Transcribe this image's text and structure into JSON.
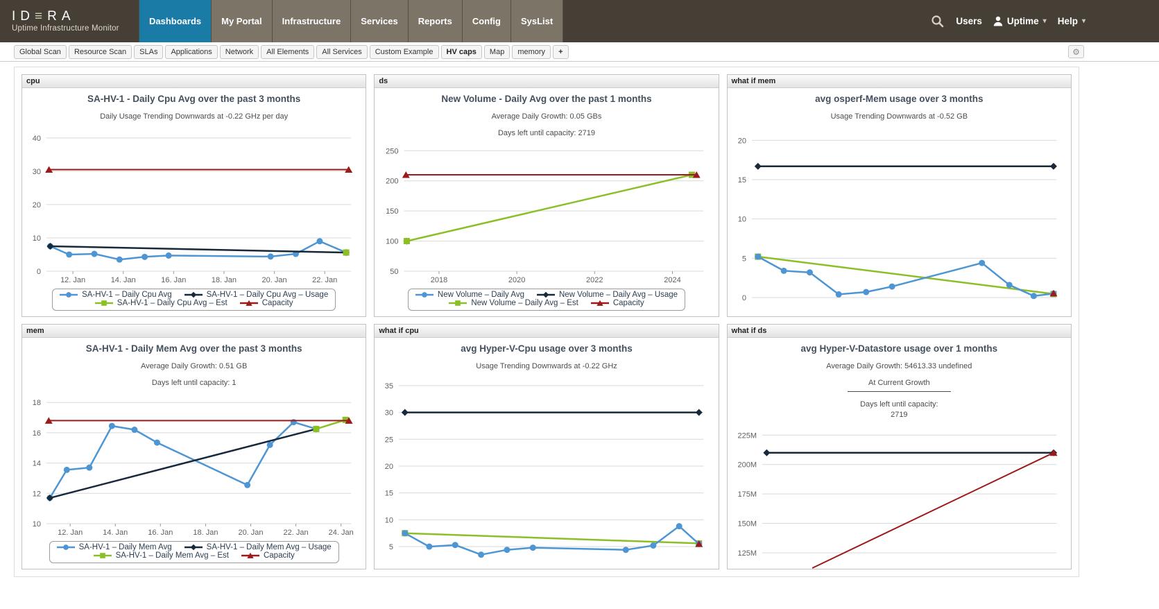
{
  "header": {
    "logo": {
      "brand": "IDERA",
      "display_left": "ID",
      "display_e": "≡",
      "display_right": "RA",
      "subtitle": "Uptime Infrastructure Monitor"
    },
    "nav": [
      {
        "label": "Dashboards",
        "active": true
      },
      {
        "label": "My Portal"
      },
      {
        "label": "Infrastructure"
      },
      {
        "label": "Services"
      },
      {
        "label": "Reports"
      },
      {
        "label": "Config"
      },
      {
        "label": "SysList"
      }
    ],
    "right": {
      "users": "Users",
      "account": "Uptime",
      "help": "Help"
    }
  },
  "tabbar": {
    "tabs": [
      {
        "label": "Global Scan"
      },
      {
        "label": "Resource Scan"
      },
      {
        "label": "SLAs"
      },
      {
        "label": "Applications"
      },
      {
        "label": "Network"
      },
      {
        "label": "All Elements"
      },
      {
        "label": "All Services"
      },
      {
        "label": "Custom Example"
      },
      {
        "label": "HV caps",
        "active": true
      },
      {
        "label": "Map"
      },
      {
        "label": "memory"
      }
    ],
    "add_tab": "+"
  },
  "icons": {
    "gear": "⚙",
    "caret": "▾"
  },
  "colors": {
    "nav_active_blue": "#1a7ba6",
    "header_brown": "#46f3f35",
    "series_avg_blue": "#4e96d3",
    "series_usage_navy": "#17293a",
    "series_est_green": "#8cbf26",
    "series_capacity_red": "#9c1a1a"
  },
  "charts": [
    {
      "panel_label": "cpu",
      "type": "line",
      "title": "SA-HV-1 - Daily Cpu Avg over the past 3 months",
      "subtitles": [
        {
          "text": "Daily Usage Trending Downwards at -0.22 GHz per day"
        }
      ],
      "xlim": [
        10.95,
        23.05
      ],
      "ylim": [
        0,
        43.5
      ],
      "yticks": [
        {
          "v": 0,
          "label": "0"
        },
        {
          "v": 10,
          "label": "10"
        },
        {
          "v": 20,
          "label": "20"
        },
        {
          "v": 30,
          "label": "30"
        },
        {
          "v": 40,
          "label": "40"
        }
      ],
      "xticks": [
        {
          "v": 12,
          "label": "12. Jan"
        },
        {
          "v": 14,
          "label": "14. Jan"
        },
        {
          "v": 16,
          "label": "16. Jan"
        },
        {
          "v": 18,
          "label": "18. Jan"
        },
        {
          "v": 20,
          "label": "20. Jan"
        },
        {
          "v": 22,
          "label": "22. Jan"
        }
      ],
      "series": [
        {
          "role": "avg",
          "name": "SA-HV-1 – Daily Cpu Avg",
          "color": "#4e96d3",
          "marker": "circle",
          "marker_at": "all",
          "x": [
            11.1,
            11.85,
            12.85,
            13.85,
            14.85,
            15.8,
            19.85,
            20.85,
            21.8,
            22.85
          ],
          "y": [
            7.5,
            5.0,
            5.2,
            3.5,
            4.3,
            4.7,
            4.4,
            5.2,
            9.0,
            5.6
          ]
        },
        {
          "role": "usage",
          "name": "SA-HV-1 – Daily Cpu Avg – Usage",
          "color": "#17293a",
          "marker": "diamond",
          "marker_at": "ends",
          "x": [
            11.1,
            22.85
          ],
          "y": [
            7.5,
            5.6
          ]
        },
        {
          "role": "est",
          "name": "SA-HV-1 – Daily Cpu Avg – Est",
          "color": "#8cbf26",
          "marker": "square",
          "marker_at": "all",
          "x": [
            22.85
          ],
          "y": [
            5.6
          ]
        },
        {
          "role": "capacity",
          "name": "Capacity",
          "color": "#9c1a1a",
          "marker": "triangle",
          "marker_at": "ends",
          "x": [
            11.05,
            22.95
          ],
          "y": [
            30.5,
            30.5
          ]
        }
      ],
      "legend_rows": [
        [
          0,
          1
        ],
        [
          2,
          3
        ]
      ]
    },
    {
      "panel_label": "ds",
      "type": "line",
      "title": "New Volume - Daily Avg over the past 1 months",
      "subtitles": [
        {
          "text": "Average Daily Growth: 0.05 GBs"
        },
        {
          "text": "Days left until capacity: 2719"
        }
      ],
      "xlim": [
        2017.1,
        2024.8
      ],
      "ylim": [
        50,
        263
      ],
      "yticks": [
        {
          "v": 50,
          "label": "50"
        },
        {
          "v": 100,
          "label": "100"
        },
        {
          "v": 150,
          "label": "150"
        },
        {
          "v": 200,
          "label": "200"
        },
        {
          "v": 250,
          "label": "250"
        }
      ],
      "xticks": [
        {
          "v": 2018,
          "label": "2018"
        },
        {
          "v": 2020,
          "label": "2020"
        },
        {
          "v": 2022,
          "label": "2022"
        },
        {
          "v": 2024,
          "label": "2024"
        }
      ],
      "series": [
        {
          "role": "avg",
          "name": "New Volume – Daily Avg",
          "color": "#4e96d3",
          "marker": "circle",
          "marker_at": "all",
          "x": [
            2017.17
          ],
          "y": [
            100
          ]
        },
        {
          "role": "usage",
          "name": "New Volume – Daily Avg – Usage",
          "color": "#17293a",
          "marker": "diamond",
          "marker_at": "all",
          "x": [
            2017.17
          ],
          "y": [
            100
          ]
        },
        {
          "role": "est",
          "name": "New Volume – Daily Avg – Est",
          "color": "#8cbf26",
          "marker": "square",
          "marker_at": "ends",
          "x": [
            2017.17,
            2024.5
          ],
          "y": [
            100,
            210
          ]
        },
        {
          "role": "capacity",
          "name": "Capacity",
          "color": "#9c1a1a",
          "marker": "triangle",
          "marker_at": "ends",
          "x": [
            2017.15,
            2024.62
          ],
          "y": [
            210,
            210
          ]
        }
      ],
      "legend_rows": [
        [
          0,
          1
        ],
        [
          2,
          3
        ]
      ]
    },
    {
      "panel_label": "what if mem",
      "type": "line",
      "title": "avg osperf-Mem usage over 3 months",
      "subtitles": [
        {
          "text": "Usage Trending Downwards at -0.52 GB"
        }
      ],
      "xlim": [
        0,
        1
      ],
      "ylim": [
        -2.3,
        21.8
      ],
      "yticks": [
        {
          "v": 0,
          "label": "0"
        },
        {
          "v": 5,
          "label": "5"
        },
        {
          "v": 10,
          "label": "10"
        },
        {
          "v": 15,
          "label": "15"
        },
        {
          "v": 20,
          "label": "20"
        }
      ],
      "xticks": [],
      "series": [
        {
          "role": "est",
          "color": "#8cbf26",
          "marker": "square",
          "marker_at": "ends",
          "x": [
            0.02,
            0.99
          ],
          "y": [
            5.2,
            0.45
          ]
        },
        {
          "role": "avg",
          "color": "#4e96d3",
          "marker": "circle",
          "marker_at": "all",
          "x": [
            0.02,
            0.105,
            0.19,
            0.285,
            0.375,
            0.46,
            0.755,
            0.845,
            0.925,
            0.99
          ],
          "y": [
            5.2,
            3.4,
            3.2,
            0.4,
            0.7,
            1.4,
            4.4,
            1.6,
            0.2,
            0.5
          ]
        },
        {
          "role": "usage",
          "color": "#17293a",
          "marker": "diamond",
          "marker_at": "ends",
          "x": [
            0.02,
            0.99
          ],
          "y": [
            16.7,
            16.7
          ]
        },
        {
          "role": "capacity",
          "color": "#9c1a1a",
          "marker": "triangle",
          "marker_at": "all",
          "x": [
            0.99
          ],
          "y": [
            0.55
          ]
        }
      ],
      "legend_rows": null
    },
    {
      "panel_label": "mem",
      "type": "line",
      "title": "SA-HV-1 - Daily Mem Avg over the past 3 months",
      "subtitles": [
        {
          "text": "Average Daily Growth: 0.51 GB"
        },
        {
          "text": "Days left until capacity: 1"
        }
      ],
      "xlim": [
        10.95,
        24.45
      ],
      "ylim": [
        10,
        18.65
      ],
      "yticks": [
        {
          "v": 10,
          "label": "10"
        },
        {
          "v": 12,
          "label": "12"
        },
        {
          "v": 14,
          "label": "14"
        },
        {
          "v": 16,
          "label": "16"
        },
        {
          "v": 18,
          "label": "18"
        }
      ],
      "xticks": [
        {
          "v": 12,
          "label": "12. Jan"
        },
        {
          "v": 14,
          "label": "14. Jan"
        },
        {
          "v": 16,
          "label": "16. Jan"
        },
        {
          "v": 18,
          "label": "18. Jan"
        },
        {
          "v": 20,
          "label": "20. Jan"
        },
        {
          "v": 22,
          "label": "22. Jan"
        },
        {
          "v": 24,
          "label": "24. Jan"
        }
      ],
      "series": [
        {
          "role": "avg",
          "name": "SA-HV-1 – Daily Mem Avg",
          "color": "#4e96d3",
          "marker": "circle",
          "marker_at": "all",
          "x": [
            11.1,
            11.85,
            12.85,
            13.85,
            14.85,
            15.85,
            19.85,
            20.85,
            21.9,
            22.9
          ],
          "y": [
            11.7,
            13.55,
            13.7,
            16.45,
            16.2,
            15.35,
            12.55,
            15.2,
            16.7,
            16.25
          ]
        },
        {
          "role": "usage",
          "name": "SA-HV-1 – Daily Mem Avg – Usage",
          "color": "#17293a",
          "marker": "diamond",
          "marker_at": "ends",
          "x": [
            11.1,
            22.9
          ],
          "y": [
            11.7,
            16.25
          ]
        },
        {
          "role": "est",
          "name": "SA-HV-1 – Daily Mem Avg – Est",
          "color": "#8cbf26",
          "marker": "square",
          "marker_at": "ends",
          "x": [
            22.9,
            24.2
          ],
          "y": [
            16.25,
            16.85
          ]
        },
        {
          "role": "capacity",
          "name": "Capacity",
          "color": "#9c1a1a",
          "marker": "triangle",
          "marker_at": "ends",
          "x": [
            11.05,
            24.35
          ],
          "y": [
            16.8,
            16.8
          ]
        }
      ],
      "legend_rows": [
        [
          0,
          1
        ],
        [
          2,
          3
        ]
      ]
    },
    {
      "panel_label": "what if cpu",
      "type": "line",
      "title": "avg Hyper-V-Cpu usage over 3 months",
      "subtitles": [
        {
          "text": "Usage Trending Downwards at -0.22 GHz"
        }
      ],
      "xlim": [
        0,
        1
      ],
      "ylim": [
        1.0,
        36.8
      ],
      "yticks": [
        {
          "v": 5,
          "label": "5"
        },
        {
          "v": 10,
          "label": "10"
        },
        {
          "v": 15,
          "label": "15"
        },
        {
          "v": 20,
          "label": "20"
        },
        {
          "v": 25,
          "label": "25"
        },
        {
          "v": 30,
          "label": "30"
        },
        {
          "v": 35,
          "label": "35"
        }
      ],
      "xticks": [],
      "series": [
        {
          "role": "est",
          "color": "#8cbf26",
          "marker": "square",
          "marker_at": "ends",
          "x": [
            0.02,
            0.985
          ],
          "y": [
            7.5,
            5.6
          ]
        },
        {
          "role": "avg",
          "color": "#4e96d3",
          "marker": "circle",
          "marker_at": "all",
          "x": [
            0.02,
            0.1,
            0.185,
            0.27,
            0.355,
            0.44,
            0.745,
            0.835,
            0.92,
            0.985
          ],
          "y": [
            7.5,
            5.0,
            5.3,
            3.5,
            4.4,
            4.8,
            4.4,
            5.2,
            8.8,
            5.5
          ]
        },
        {
          "role": "usage",
          "color": "#17293a",
          "marker": "diamond",
          "marker_at": "ends",
          "x": [
            0.02,
            0.985
          ],
          "y": [
            30,
            30
          ]
        },
        {
          "role": "capacity",
          "color": "#9c1a1a",
          "marker": "triangle",
          "marker_at": "all",
          "x": [
            0.985
          ],
          "y": [
            5.5
          ]
        }
      ],
      "legend_rows": null
    },
    {
      "panel_label": "what if ds",
      "type": "line",
      "title": "avg Hyper-V-Datastore usage over 1 months",
      "subtitles": [
        {
          "text": "Average Daily Growth: 54613.33 undefined"
        },
        {
          "text": "At Current Growth",
          "underline": true
        },
        {
          "text": "Days left until capacity:"
        },
        {
          "text": "2719",
          "tight": true
        }
      ],
      "xlim": [
        0,
        1
      ],
      "ylim": [
        112,
        234
      ],
      "yticks": [
        {
          "v": 125,
          "label": "125M"
        },
        {
          "v": 150,
          "label": "150M"
        },
        {
          "v": 175,
          "label": "175M"
        },
        {
          "v": 200,
          "label": "200M"
        },
        {
          "v": 225,
          "label": "225M"
        }
      ],
      "xticks": [],
      "series": [
        {
          "role": "usage",
          "color": "#17293a",
          "marker": "diamond",
          "marker_at": "ends",
          "x": [
            0.015,
            0.99
          ],
          "y": [
            210,
            210
          ]
        },
        {
          "role": "capacity",
          "color": "#9c1a1a",
          "marker": "triangle",
          "marker_at": "end",
          "x": [
            0.17,
            0.99
          ],
          "y": [
            112,
            210
          ]
        }
      ],
      "legend_rows": null
    }
  ]
}
